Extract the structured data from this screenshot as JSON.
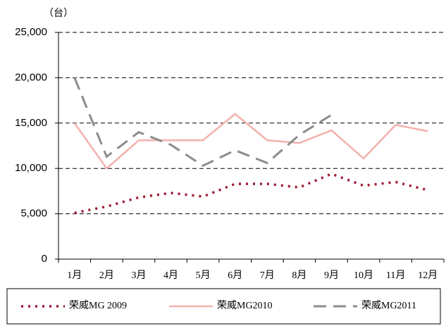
{
  "chart_data": {
    "type": "line",
    "y_unit": "（台）",
    "categories": [
      "1月",
      "2月",
      "3月",
      "4月",
      "5月",
      "6月",
      "7月",
      "8月",
      "9月",
      "10月",
      "11月",
      "12月"
    ],
    "series": [
      {
        "name": "荣威MG 2009",
        "color": "#9b1b30",
        "style": "dotted",
        "values": [
          5100,
          5800,
          6800,
          7300,
          6900,
          8300,
          8300,
          7900,
          9400,
          8100,
          8500,
          7600
        ]
      },
      {
        "name": "荣威MG2010",
        "color": "#f2b1ad",
        "style": "solid",
        "values": [
          15000,
          10000,
          13100,
          13100,
          13100,
          16000,
          13100,
          12800,
          14200,
          11100,
          14800,
          14100
        ]
      },
      {
        "name": "荣威MG2011",
        "color": "#8c8c8c",
        "style": "dashed",
        "values": [
          20000,
          11300,
          14000,
          12600,
          10300,
          12000,
          10600,
          13700,
          15900,
          null,
          null,
          null
        ]
      }
    ],
    "ylim": [
      0,
      25000
    ],
    "yticks": [
      0,
      {
        "value": 5000,
        "label": "5,000"
      },
      {
        "value": 10000,
        "label": "10,000"
      },
      {
        "value": 15000,
        "label": "15,000"
      },
      {
        "value": 20000,
        "label": "20,000"
      },
      {
        "value": 25000,
        "label": "25,000"
      }
    ],
    "grid": true,
    "legend": "bottom"
  }
}
